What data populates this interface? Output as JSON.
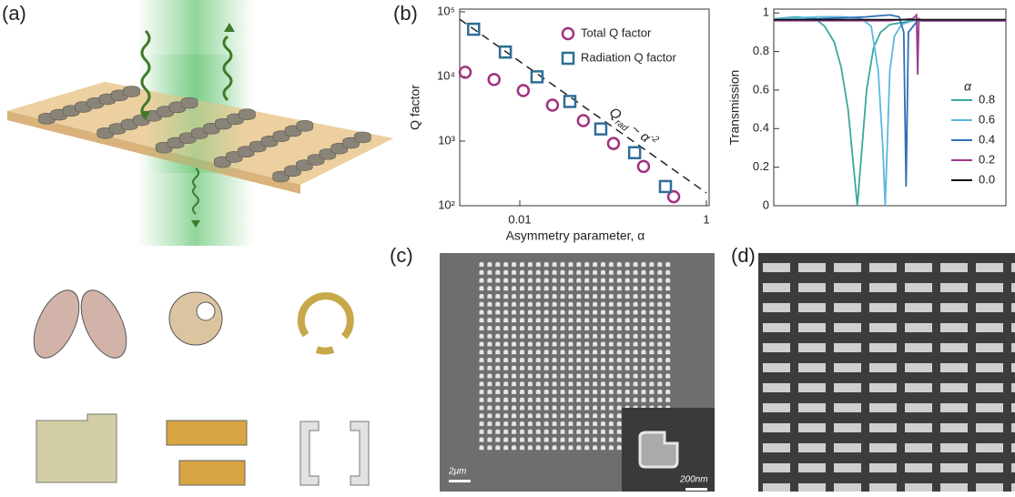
{
  "panel_labels": [
    "(a)",
    "(b)",
    "(c)",
    "(d)"
  ],
  "scale_bars": [
    "2μm",
    "200nm"
  ],
  "chart_data": [
    {
      "type": "scatter",
      "x_label": "Asymmetry parameter, α",
      "y_label": "Q factor",
      "xlog": true,
      "ylog": true,
      "xlim": [
        0.00227,
        1.07
      ],
      "ylim": [
        100,
        110000
      ],
      "xticks": [
        0.01,
        1
      ],
      "yticks": [
        {
          "value": 100,
          "label": "10²"
        },
        {
          "value": 1000,
          "label": "10³"
        },
        {
          "value": 10000,
          "label": "10⁴"
        },
        {
          "value": 100000,
          "label": "10⁵"
        }
      ],
      "legend": "upper right",
      "series": [
        {
          "name": "Total Q factor",
          "marker": "circle",
          "color": "#a0327f",
          "x": [
            0.0026,
            0.0053,
            0.0109,
            0.0224,
            0.048,
            0.101,
            0.212,
            0.446
          ],
          "values": [
            11600,
            8950,
            6050,
            3600,
            2070,
            916,
            405,
            138
          ]
        },
        {
          "name": "Radiation Q factor",
          "marker": "square",
          "color": "#2e6e96",
          "x": [
            0.0032,
            0.007,
            0.0153,
            0.0344,
            0.0738,
            0.17,
            0.364
          ],
          "values": [
            53700,
            23800,
            9860,
            4100,
            1540,
            661,
            198
          ]
        }
      ],
      "fit": {
        "color": "#222",
        "x": [
          0.00227,
          1
        ],
        "values": [
          76700,
          158
        ]
      },
      "annotation": {
        "text": "Q",
        "sub": "rad",
        "rest": " ~ α",
        "sup": "-2"
      }
    },
    {
      "type": "line",
      "y_label": "Transmission",
      "xlim": [
        0,
        100
      ],
      "ylim": [
        0,
        1.02
      ],
      "yticks": [
        0,
        0.2,
        0.4,
        0.6,
        0.8,
        1
      ],
      "legend": "center right",
      "legend_title": "α",
      "series": [
        {
          "name": "0.8",
          "color": "#3aa89a",
          "x": [
            0,
            10,
            18,
            22,
            26,
            29,
            32,
            34,
            36,
            38,
            40,
            43,
            46,
            50,
            60,
            100
          ],
          "values": [
            0.97,
            0.98,
            0.97,
            0.93,
            0.85,
            0.72,
            0.5,
            0.25,
            0,
            0.3,
            0.6,
            0.82,
            0.9,
            0.94,
            0.96,
            0.96
          ]
        },
        {
          "name": "0.6",
          "color": "#5bb8e0",
          "x": [
            0,
            20,
            30,
            38,
            42,
            45,
            47,
            48,
            49,
            50,
            52,
            55,
            60,
            100
          ],
          "values": [
            0.97,
            0.98,
            0.98,
            0.97,
            0.93,
            0.7,
            0.3,
            0,
            0.35,
            0.7,
            0.88,
            0.94,
            0.96,
            0.96
          ]
        },
        {
          "name": "0.4",
          "color": "#2f6fb8",
          "x": [
            0,
            20,
            40,
            50,
            54,
            56,
            57,
            58,
            62,
            100
          ],
          "values": [
            0.96,
            0.97,
            0.98,
            0.99,
            0.98,
            0.9,
            0.1,
            0.9,
            0.96,
            0.96
          ]
        },
        {
          "name": "0.2",
          "color": "#9b3a8c",
          "x": [
            0,
            50,
            60,
            61.5,
            62,
            62.5,
            64,
            100
          ],
          "values": [
            0.96,
            0.96,
            0.97,
            0.99,
            0.68,
            0.97,
            0.96,
            0.96
          ]
        },
        {
          "name": "0.0",
          "color": "#111111",
          "x": [
            0,
            100
          ],
          "values": [
            0.965,
            0.965
          ]
        }
      ]
    }
  ]
}
